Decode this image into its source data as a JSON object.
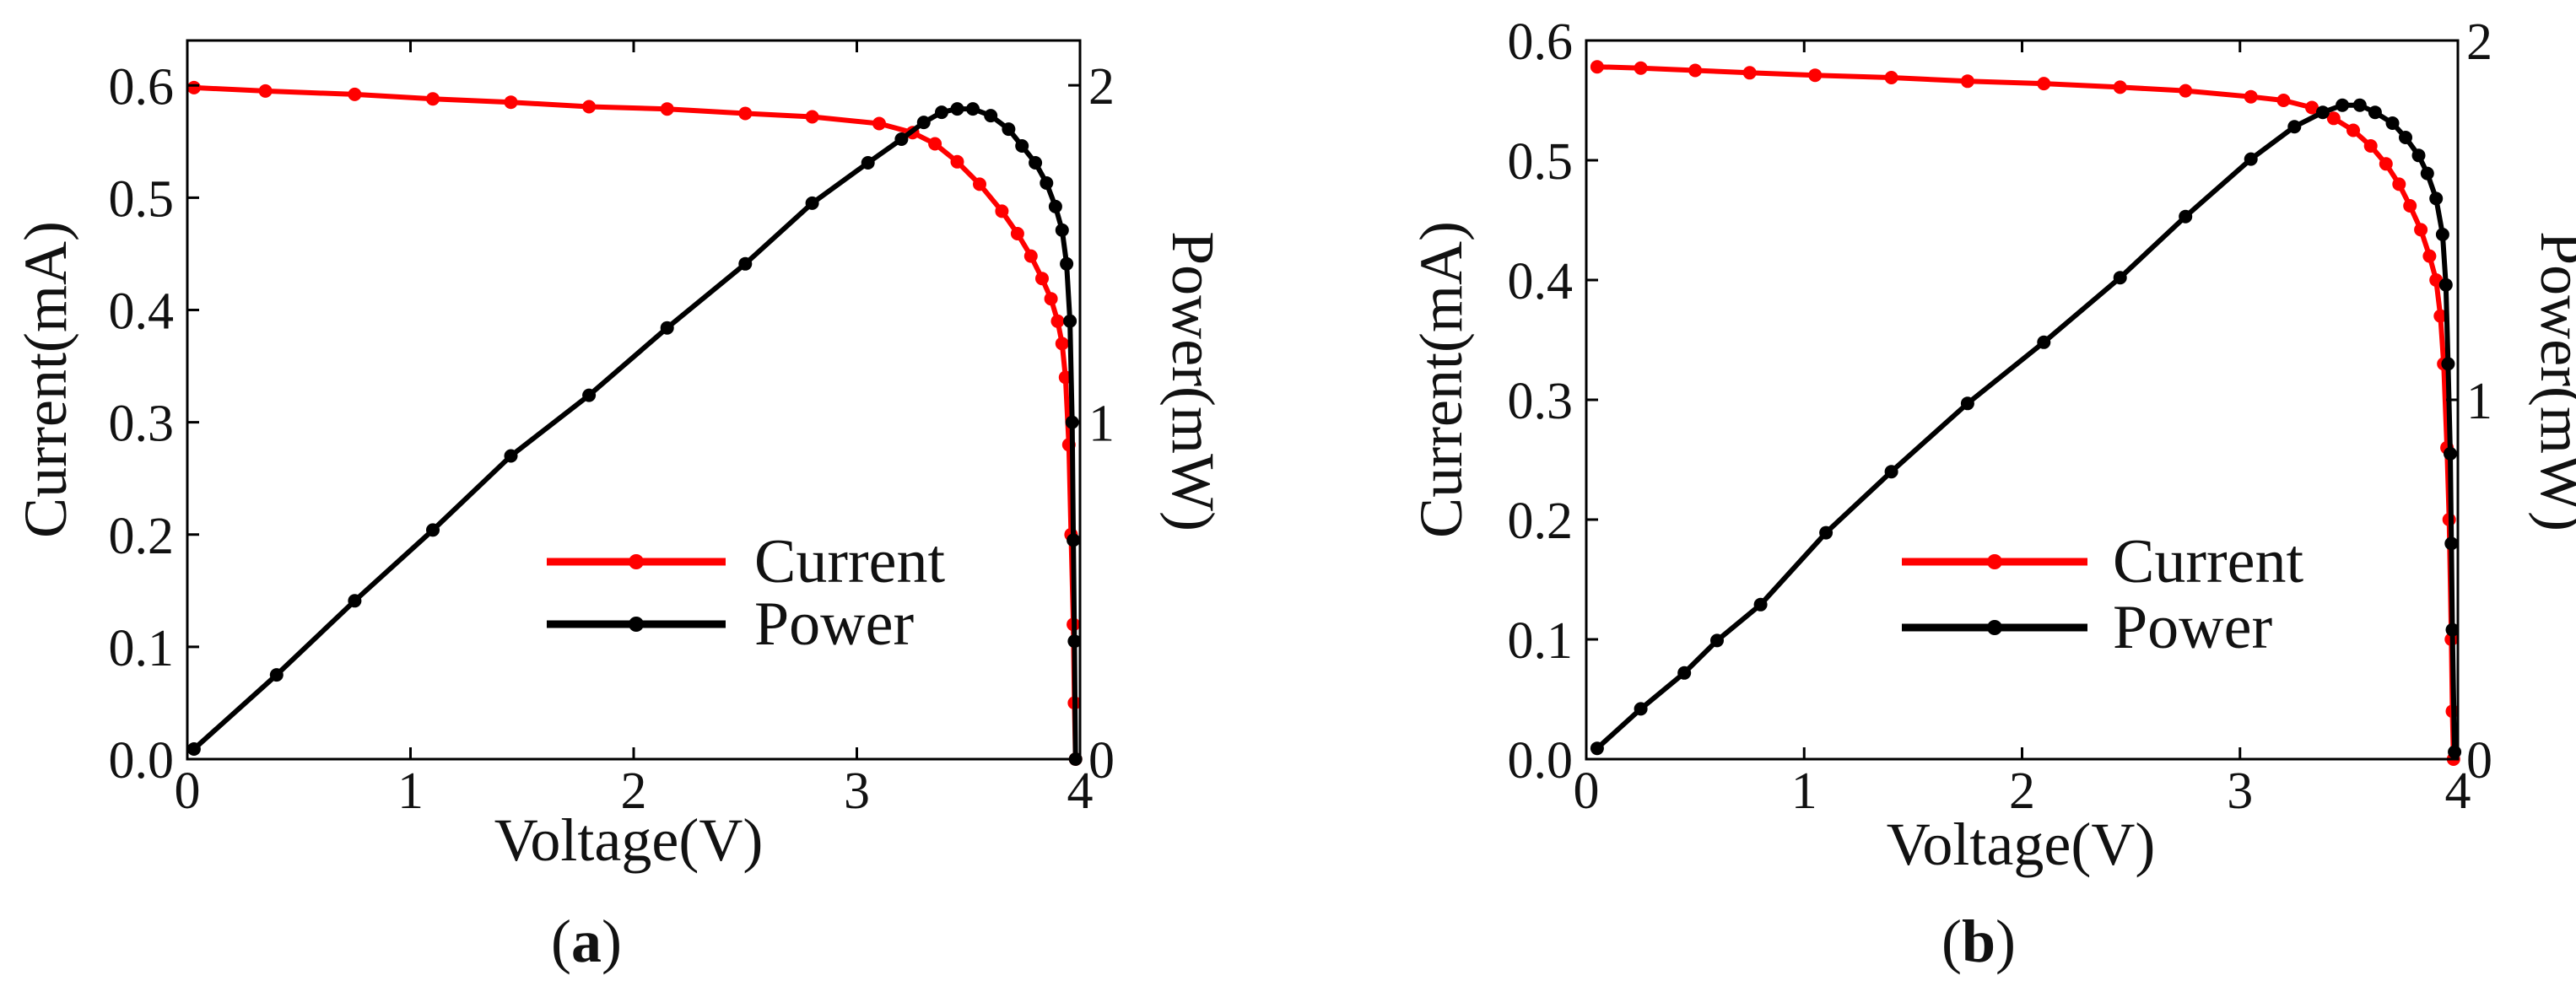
{
  "chart_data": [
    {
      "type": "line",
      "panel_label": {
        "open": "(",
        "letter": "a",
        "close": ")"
      },
      "xlabel": "Voltage(V)",
      "ylabel": "Current(mA)",
      "y2label": "Power(mW)",
      "xlim": [
        0,
        4
      ],
      "ylim": [
        0,
        0.64
      ],
      "y2lim": [
        0,
        2.133
      ],
      "xticks": [
        "0",
        "1",
        "2",
        "3",
        "4"
      ],
      "yticks": [
        "0.0",
        "0.1",
        "0.2",
        "0.3",
        "0.4",
        "0.5",
        "0.6"
      ],
      "y2ticks": [
        "0",
        "1",
        "2"
      ],
      "legend_position": "lower-right",
      "series": [
        {
          "name": "Current",
          "axis": "left",
          "color": "#ff0000",
          "points": [
            [
              0.03,
              0.598
            ],
            [
              0.35,
              0.595
            ],
            [
              0.75,
              0.592
            ],
            [
              1.1,
              0.588
            ],
            [
              1.45,
              0.585
            ],
            [
              1.8,
              0.581
            ],
            [
              2.15,
              0.579
            ],
            [
              2.5,
              0.575
            ],
            [
              2.8,
              0.572
            ],
            [
              3.1,
              0.566
            ],
            [
              3.25,
              0.558
            ],
            [
              3.35,
              0.548
            ],
            [
              3.45,
              0.532
            ],
            [
              3.55,
              0.512
            ],
            [
              3.65,
              0.488
            ],
            [
              3.72,
              0.468
            ],
            [
              3.78,
              0.448
            ],
            [
              3.83,
              0.428
            ],
            [
              3.87,
              0.41
            ],
            [
              3.9,
              0.39
            ],
            [
              3.92,
              0.37
            ],
            [
              3.935,
              0.34
            ],
            [
              3.95,
              0.28
            ],
            [
              3.96,
              0.2
            ],
            [
              3.97,
              0.12
            ],
            [
              3.975,
              0.05
            ],
            [
              3.98,
              0.0
            ]
          ]
        },
        {
          "name": "Power",
          "axis": "right",
          "color": "#000000",
          "points": [
            [
              0.03,
              0.03
            ],
            [
              0.4,
              0.25
            ],
            [
              0.75,
              0.47
            ],
            [
              1.1,
              0.68
            ],
            [
              1.45,
              0.9
            ],
            [
              1.8,
              1.08
            ],
            [
              2.15,
              1.28
            ],
            [
              2.5,
              1.47
            ],
            [
              2.8,
              1.65
            ],
            [
              3.05,
              1.77
            ],
            [
              3.2,
              1.84
            ],
            [
              3.3,
              1.89
            ],
            [
              3.38,
              1.92
            ],
            [
              3.45,
              1.93
            ],
            [
              3.52,
              1.93
            ],
            [
              3.6,
              1.91
            ],
            [
              3.68,
              1.87
            ],
            [
              3.74,
              1.82
            ],
            [
              3.8,
              1.77
            ],
            [
              3.85,
              1.71
            ],
            [
              3.89,
              1.64
            ],
            [
              3.92,
              1.57
            ],
            [
              3.94,
              1.47
            ],
            [
              3.955,
              1.3
            ],
            [
              3.965,
              1.0
            ],
            [
              3.97,
              0.65
            ],
            [
              3.975,
              0.35
            ],
            [
              3.98,
              0.0
            ]
          ]
        }
      ]
    },
    {
      "type": "line",
      "panel_label": {
        "open": "(",
        "letter": "b",
        "close": ")"
      },
      "xlabel": "Voltage(V)",
      "ylabel": "Current(mA)",
      "y2label": "Power(mW)",
      "xlim": [
        0,
        4
      ],
      "ylim": [
        0,
        0.6
      ],
      "y2lim": [
        0,
        2.0
      ],
      "xticks": [
        "0",
        "1",
        "2",
        "3",
        "4"
      ],
      "yticks": [
        "0.0",
        "0.1",
        "0.2",
        "0.3",
        "0.4",
        "0.5",
        "0.6"
      ],
      "y2ticks": [
        "0",
        "1",
        "2"
      ],
      "legend_position": "lower-right",
      "series": [
        {
          "name": "Current",
          "axis": "left",
          "color": "#ff0000",
          "points": [
            [
              0.05,
              0.578
            ],
            [
              0.25,
              0.577
            ],
            [
              0.5,
              0.575
            ],
            [
              0.75,
              0.573
            ],
            [
              1.05,
              0.571
            ],
            [
              1.4,
              0.569
            ],
            [
              1.75,
              0.566
            ],
            [
              2.1,
              0.564
            ],
            [
              2.45,
              0.561
            ],
            [
              2.75,
              0.558
            ],
            [
              3.05,
              0.553
            ],
            [
              3.2,
              0.55
            ],
            [
              3.33,
              0.544
            ],
            [
              3.43,
              0.535
            ],
            [
              3.52,
              0.525
            ],
            [
              3.6,
              0.512
            ],
            [
              3.67,
              0.497
            ],
            [
              3.73,
              0.48
            ],
            [
              3.78,
              0.462
            ],
            [
              3.83,
              0.442
            ],
            [
              3.87,
              0.42
            ],
            [
              3.9,
              0.4
            ],
            [
              3.92,
              0.37
            ],
            [
              3.935,
              0.33
            ],
            [
              3.95,
              0.26
            ],
            [
              3.96,
              0.2
            ],
            [
              3.97,
              0.1
            ],
            [
              3.975,
              0.04
            ],
            [
              3.98,
              0.0
            ]
          ]
        },
        {
          "name": "Power",
          "axis": "right",
          "color": "#000000",
          "points": [
            [
              0.05,
              0.03
            ],
            [
              0.25,
              0.14
            ],
            [
              0.45,
              0.24
            ],
            [
              0.6,
              0.33
            ],
            [
              0.8,
              0.43
            ],
            [
              1.1,
              0.63
            ],
            [
              1.4,
              0.8
            ],
            [
              1.75,
              0.99
            ],
            [
              2.1,
              1.16
            ],
            [
              2.45,
              1.34
            ],
            [
              2.75,
              1.51
            ],
            [
              3.05,
              1.67
            ],
            [
              3.25,
              1.76
            ],
            [
              3.38,
              1.8
            ],
            [
              3.47,
              1.82
            ],
            [
              3.55,
              1.82
            ],
            [
              3.62,
              1.8
            ],
            [
              3.7,
              1.77
            ],
            [
              3.76,
              1.73
            ],
            [
              3.82,
              1.68
            ],
            [
              3.86,
              1.63
            ],
            [
              3.9,
              1.56
            ],
            [
              3.93,
              1.46
            ],
            [
              3.945,
              1.32
            ],
            [
              3.955,
              1.1
            ],
            [
              3.965,
              0.85
            ],
            [
              3.97,
              0.6
            ],
            [
              3.975,
              0.36
            ],
            [
              3.985,
              0.02
            ]
          ]
        }
      ]
    }
  ]
}
